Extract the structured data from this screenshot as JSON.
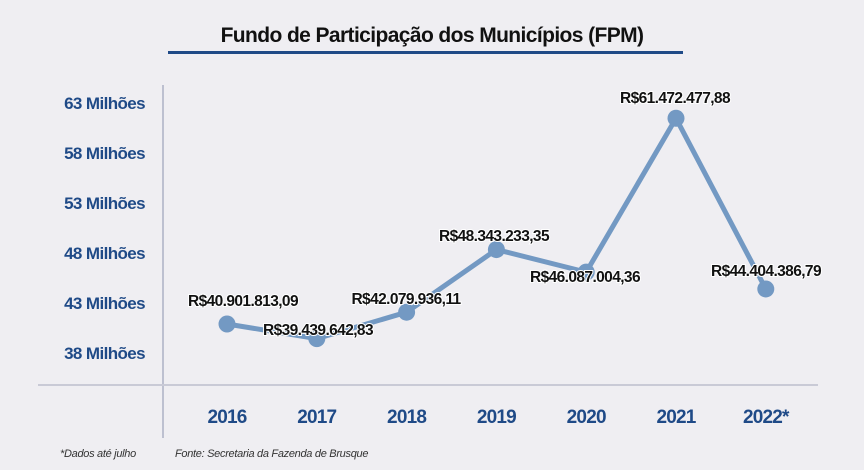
{
  "chart_data": {
    "type": "line",
    "title": "Fundo de Participação dos Municípios (FPM)",
    "categories": [
      "2016",
      "2017",
      "2018",
      "2019",
      "2020",
      "2021",
      "2022*"
    ],
    "values": [
      40901813.09,
      39439642.83,
      42079936.11,
      48343233.35,
      46087004.36,
      61472477.88,
      44404386.79
    ],
    "data_labels": [
      "R$40.901.813,09",
      "R$39.439.642,83",
      "R$42.079.936,11",
      "R$48.343.233,35",
      "R$46.087.004,36",
      "R$61.472.477,88",
      "R$44.404.386,79"
    ],
    "yticks": [
      38000000,
      43000000,
      48000000,
      53000000,
      58000000,
      63000000
    ],
    "ytick_labels": [
      "38 Milhões",
      "43 Milhões",
      "48 Milhões",
      "53 Milhões",
      "58 Milhões",
      "63 Milhões"
    ],
    "ylim": [
      34800000,
      65000000
    ],
    "grid": false,
    "xlabel": "",
    "ylabel": "",
    "colors": {
      "line": "#7399c3",
      "axis_text": "#1f4a87",
      "title_underline": "#1f4a87",
      "axis_line": "#c9cad6"
    }
  },
  "footnotes": {
    "note": "*Dados até julho",
    "source": "Fonte: Secretaria da Fazenda de Brusque"
  }
}
